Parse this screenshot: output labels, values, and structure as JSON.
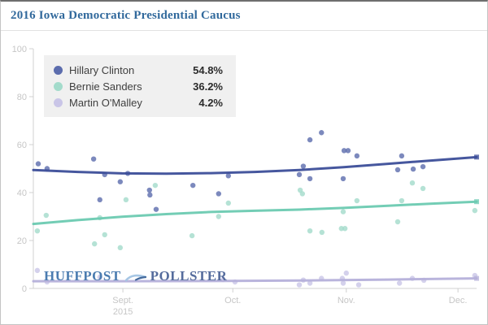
{
  "header": {
    "title": "2016 Iowa Democratic Presidential Caucus"
  },
  "watermark": {
    "part1": "HUFFPOST",
    "part2": "POLLSTER"
  },
  "legend": {
    "position": "top-left",
    "items": [
      {
        "label": "Hillary Clinton",
        "value": "54.8%",
        "color": "#5b6cad"
      },
      {
        "label": "Bernie Sanders",
        "value": "36.2%",
        "color": "#a3dbcb"
      },
      {
        "label": "Martin O'Malley",
        "value": "4.2%",
        "color": "#c9c5e7"
      }
    ]
  },
  "chart_data": {
    "type": "scatter",
    "title": "2016 Iowa Democratic Presidential Caucus",
    "xlabel": "",
    "ylabel": "",
    "ylim": [
      0,
      100
    ],
    "grid": false,
    "x_unit": "percent of axis width (Aug 2015 - early Dec 2015)",
    "y_ticks": [
      0,
      20,
      40,
      60,
      80,
      100
    ],
    "x_ticks": [
      {
        "pos": 20.2,
        "label": "Sept.",
        "sublabel": "2015"
      },
      {
        "pos": 45.0,
        "label": "Oct.",
        "sublabel": ""
      },
      {
        "pos": 70.6,
        "label": "Nov.",
        "sublabel": ""
      },
      {
        "pos": 95.8,
        "label": "Dec.",
        "sublabel": ""
      }
    ],
    "axis_color": "#d0d0d0",
    "tick_text_color": "#c6c6c6",
    "series": [
      {
        "name": "Hillary Clinton",
        "estimate": 54.8,
        "line_color": "#3c4e99",
        "point_color": "#5b6cad",
        "trend": [
          [
            0,
            49.4
          ],
          [
            10,
            48.6
          ],
          [
            20,
            48.0
          ],
          [
            30,
            47.9
          ],
          [
            40,
            48.1
          ],
          [
            50,
            48.6
          ],
          [
            60,
            49.4
          ],
          [
            70,
            50.6
          ],
          [
            80,
            52.0
          ],
          [
            90,
            53.4
          ],
          [
            100,
            54.8
          ]
        ],
        "points": [
          [
            1.1,
            52
          ],
          [
            3.1,
            50
          ],
          [
            13.6,
            54
          ],
          [
            15.0,
            37
          ],
          [
            16.1,
            47.5
          ],
          [
            19.6,
            44.5
          ],
          [
            21.3,
            48
          ],
          [
            26.2,
            41
          ],
          [
            26.3,
            39
          ],
          [
            27.7,
            33
          ],
          [
            36.0,
            43
          ],
          [
            41.8,
            39.5
          ],
          [
            44.0,
            47
          ],
          [
            60.0,
            47.5
          ],
          [
            60.9,
            51
          ],
          [
            62.4,
            45.8
          ],
          [
            62.4,
            62
          ],
          [
            65.0,
            65
          ],
          [
            69.9,
            45.8
          ],
          [
            70.1,
            57.5
          ],
          [
            71.0,
            57.5
          ],
          [
            73.0,
            55.3
          ],
          [
            82.2,
            49.5
          ],
          [
            83.1,
            55.3
          ],
          [
            85.7,
            49.8
          ],
          [
            87.9,
            50.8
          ]
        ]
      },
      {
        "name": "Bernie Sanders",
        "estimate": 36.2,
        "line_color": "#6bcab1",
        "point_color": "#a3dbcb",
        "trend": [
          [
            0,
            26.9
          ],
          [
            10,
            28.5
          ],
          [
            20,
            29.9
          ],
          [
            30,
            31.0
          ],
          [
            40,
            31.9
          ],
          [
            50,
            32.4
          ],
          [
            60,
            32.9
          ],
          [
            70,
            33.6
          ],
          [
            80,
            34.5
          ],
          [
            90,
            35.4
          ],
          [
            100,
            36.2
          ]
        ],
        "points": [
          [
            0.9,
            24
          ],
          [
            2.9,
            30.5
          ],
          [
            13.8,
            18.6
          ],
          [
            15.0,
            29.5
          ],
          [
            16.1,
            22.4
          ],
          [
            19.6,
            17
          ],
          [
            20.9,
            37
          ],
          [
            27.5,
            43
          ],
          [
            35.8,
            22
          ],
          [
            41.8,
            30
          ],
          [
            44.0,
            35.6
          ],
          [
            60.2,
            41
          ],
          [
            60.7,
            39.5
          ],
          [
            62.4,
            24
          ],
          [
            65.1,
            23.4
          ],
          [
            69.5,
            25
          ],
          [
            70.3,
            25
          ],
          [
            69.9,
            32
          ],
          [
            73.0,
            36.6
          ],
          [
            82.2,
            27.8
          ],
          [
            83.1,
            36.6
          ],
          [
            85.5,
            44
          ],
          [
            87.9,
            41.7
          ],
          [
            99.6,
            32.5
          ]
        ]
      },
      {
        "name": "Martin O'Malley",
        "estimate": 4.2,
        "line_color": "#b5b0da",
        "point_color": "#c9c5e7",
        "trend": [
          [
            0,
            3.0
          ],
          [
            20,
            3.0
          ],
          [
            40,
            3.1
          ],
          [
            60,
            3.3
          ],
          [
            80,
            3.7
          ],
          [
            100,
            4.2
          ]
        ],
        "points": [
          [
            0.9,
            7.5
          ],
          [
            3.1,
            2.7
          ],
          [
            15.0,
            4.7
          ],
          [
            42.8,
            3.7
          ],
          [
            45.5,
            2.7
          ],
          [
            60.0,
            1.5
          ],
          [
            60.9,
            3.5
          ],
          [
            62.4,
            2.2
          ],
          [
            65.0,
            4.2
          ],
          [
            69.7,
            4.2
          ],
          [
            69.9,
            2.2
          ],
          [
            70.6,
            6.4
          ],
          [
            73.4,
            1.5
          ],
          [
            82.6,
            2.2
          ],
          [
            85.5,
            4.2
          ],
          [
            88.1,
            3.4
          ],
          [
            99.6,
            5.4
          ]
        ]
      }
    ]
  }
}
